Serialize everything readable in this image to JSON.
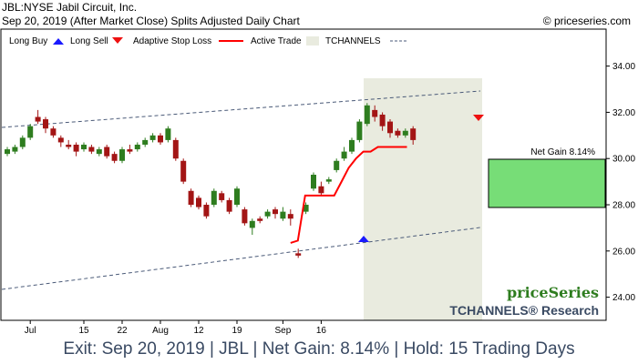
{
  "header": {
    "line1": "JBL:NYSE Jabil Circuit, Inc.",
    "line2": "Sep 20, 2019 (After Market Close)  Splits Adjusted Daily Chart",
    "copyright": "© priceseries.com"
  },
  "legend": {
    "long_buy": "Long Buy",
    "long_sell": "Long Sell",
    "stop_loss": "Adaptive Stop Loss",
    "active_trade": "Active Trade",
    "tchannels": "TCHANNELS"
  },
  "branding": {
    "logo": "priceSeries",
    "tchannels_research": "TCHANNELS® Research"
  },
  "annotation": {
    "net_gain": "Net Gain 8.14%"
  },
  "footer": {
    "text": "Exit: Sep 20, 2019 | JBL | Net Gain: 8.14% | Hold: 15 Trading Days"
  },
  "colors": {
    "up_candle": "#2e7d1f",
    "down_candle": "#a31515",
    "stop_loss": "#ff0000",
    "active_trade_bg": "#e9ebdf",
    "gain_box": "#77dd77",
    "channel": "#4a5a78",
    "buy_arrow": "#1a1aff",
    "sell_arrow": "#ee1111",
    "footer_text": "#3a4a63"
  },
  "chart_data": {
    "type": "candlestick",
    "y_ticks": [
      "24.00",
      "26.00",
      "28.00",
      "30.00",
      "32.00",
      "34.00"
    ],
    "ylim": [
      23.0,
      35.6
    ],
    "x_ticks": [
      {
        "index": 3,
        "label": "Jul"
      },
      {
        "index": 10,
        "label": "15"
      },
      {
        "index": 15,
        "label": "22"
      },
      {
        "index": 20,
        "label": "Aug"
      },
      {
        "index": 25,
        "label": "12"
      },
      {
        "index": 30,
        "label": "19"
      },
      {
        "index": 36,
        "label": "Sep"
      },
      {
        "index": 41,
        "label": "16"
      }
    ],
    "candles": [
      [
        30.2,
        30.4,
        30.1,
        30.5
      ],
      [
        30.3,
        30.5,
        30.2,
        30.6
      ],
      [
        30.5,
        30.9,
        30.4,
        31.0
      ],
      [
        30.9,
        31.4,
        30.8,
        31.5
      ],
      [
        31.8,
        31.6,
        31.5,
        32.1
      ],
      [
        31.7,
        31.3,
        31.1,
        31.8
      ],
      [
        31.3,
        31.0,
        30.9,
        31.4
      ],
      [
        30.9,
        30.7,
        30.5,
        31.0
      ],
      [
        30.6,
        30.5,
        30.4,
        30.8
      ],
      [
        30.6,
        30.3,
        30.1,
        30.7
      ],
      [
        30.4,
        30.6,
        30.3,
        30.7
      ],
      [
        30.5,
        30.3,
        30.2,
        30.6
      ],
      [
        30.2,
        30.4,
        30.1,
        30.5
      ],
      [
        30.5,
        30.1,
        30.0,
        30.6
      ],
      [
        30.2,
        29.9,
        29.8,
        30.3
      ],
      [
        29.9,
        30.4,
        29.8,
        30.5
      ],
      [
        30.4,
        30.3,
        30.2,
        30.6
      ],
      [
        30.4,
        30.6,
        30.3,
        30.7
      ],
      [
        30.6,
        30.8,
        30.5,
        30.9
      ],
      [
        30.8,
        31.0,
        30.7,
        31.1
      ],
      [
        31.0,
        30.7,
        30.6,
        31.1
      ],
      [
        30.8,
        31.3,
        30.7,
        31.4
      ],
      [
        30.8,
        30.0,
        29.9,
        30.9
      ],
      [
        29.9,
        29.0,
        28.9,
        30.0
      ],
      [
        28.6,
        28.0,
        27.9,
        28.7
      ],
      [
        28.3,
        27.9,
        27.8,
        28.4
      ],
      [
        28.0,
        27.5,
        27.4,
        28.1
      ],
      [
        28.0,
        28.6,
        27.9,
        28.7
      ],
      [
        28.5,
        28.2,
        28.1,
        28.6
      ],
      [
        28.2,
        27.7,
        27.6,
        28.3
      ],
      [
        28.0,
        28.7,
        27.9,
        28.8
      ],
      [
        27.8,
        27.2,
        27.1,
        27.9
      ],
      [
        27.0,
        27.3,
        26.7,
        27.4
      ],
      [
        27.4,
        27.3,
        27.2,
        27.5
      ],
      [
        27.5,
        27.7,
        27.4,
        27.8
      ],
      [
        27.8,
        27.6,
        27.4,
        27.9
      ],
      [
        27.4,
        27.7,
        27.3,
        27.9
      ],
      [
        27.6,
        27.4,
        27.1,
        27.8
      ]
    ],
    "stop_loss": []
  }
}
